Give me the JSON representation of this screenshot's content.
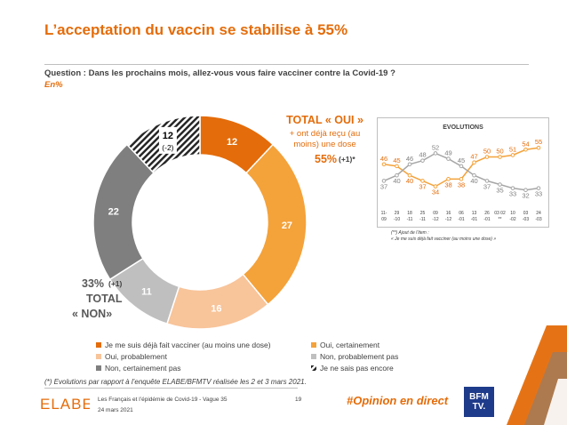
{
  "title": "L’acceptation du vaccin se stabilise à 55%",
  "question": "Question : Dans les prochains mois, allez-vous vous faire vacciner contre la Covid-19 ?",
  "unit": "En%",
  "colors": {
    "accent": "#e46c0a",
    "deja_vaccine": "#e46c0a",
    "oui_certainement": "#f4a23a",
    "oui_probablement": "#f8c49a",
    "non_probablement": "#bfbfbf",
    "non_certainement": "#7f7f7f",
    "ne_sais_pas": "#262626"
  },
  "total_oui": {
    "title": "TOTAL « OUI »",
    "subtitle_line1": "+ ont déjà reçu (au",
    "subtitle_line2": "moins) une dose",
    "value": "55%",
    "delta": "(+1)*"
  },
  "total_non": {
    "value": "33%",
    "delta": "(+1)",
    "line2": "TOTAL",
    "line3": "« NON»"
  },
  "chart_data": [
    {
      "type": "pie",
      "hole": "donut",
      "labels": [
        "Je me suis déjà fait vacciner (au moins une dose)",
        "Oui, certainement",
        "Oui, probablement",
        "Non, probablement pas",
        "Non, certainement pas",
        "Je ne sais pas encore"
      ],
      "values": [
        12,
        27,
        16,
        11,
        22,
        12
      ],
      "value_labels": [
        "12",
        "27",
        "16",
        "11",
        "22",
        "12"
      ],
      "extra_labels": {
        "ne_sais_pas_delta": "(-2)"
      },
      "legend_position": "bottom"
    },
    {
      "type": "line",
      "title": "EVOLUTIONS",
      "x": [
        "11-09",
        "29-10",
        "18-11",
        "25-11",
        "09-12",
        "16-12",
        "06-01",
        "13-01",
        "26-01",
        "03-02",
        "10-02",
        "03-03",
        "24-03"
      ],
      "x_tick_top": [
        "11-",
        "29",
        "18",
        "25",
        "09",
        "16",
        "06",
        "13",
        "26",
        "03 02",
        "10",
        "03",
        "24"
      ],
      "x_tick_bottom": [
        "09",
        "-10",
        "-11",
        "-11",
        "-12",
        "-12",
        "-01",
        "-01",
        "-01",
        "**",
        "-02",
        "-03",
        "-03"
      ],
      "series": [
        {
          "name": "oui",
          "values": [
            46,
            45,
            40,
            37,
            34,
            38,
            38,
            47,
            50,
            50,
            51,
            54,
            55
          ],
          "labels": [
            "46",
            "45",
            "40",
            "37",
            "34",
            "38",
            "38",
            "47",
            "50",
            "50",
            "51",
            "54",
            "55"
          ]
        },
        {
          "name": "non",
          "values": [
            37,
            40,
            46,
            48,
            52,
            49,
            45,
            40,
            37,
            35,
            33,
            32,
            33
          ],
          "labels": [
            "37",
            "40",
            "46",
            "48",
            "52",
            "49",
            "45",
            "40",
            "37",
            "35",
            "33",
            "32",
            "33"
          ]
        }
      ],
      "ylim": [
        28,
        58
      ],
      "notes": [
        "(**) Ajout de l’item :",
        "« Je me suis déjà fait vacciner (au moins une dose) »"
      ]
    }
  ],
  "legend": [
    {
      "label": "Je me suis déjà fait vacciner (au moins une dose)"
    },
    {
      "label": "Oui, certainement"
    },
    {
      "label": "Oui, probablement"
    },
    {
      "label": "Non, probablement pas"
    },
    {
      "label": "Non, certainement pas"
    },
    {
      "label": "Je ne sais pas encore"
    }
  ],
  "footnote": "(*) Evolutions par rapport à l’enquête ELABE/BFMTV réalisée les 2 et 3 mars 2021.",
  "footer": {
    "logo": "ELABE",
    "study": "Les Français et l’épidémie de Covid-19 - Vague 35",
    "date": "24 mars 2021",
    "page": "19",
    "hashtag": "#Opinion en direct",
    "bfm_line1": "BFM",
    "bfm_line2": "TV."
  }
}
